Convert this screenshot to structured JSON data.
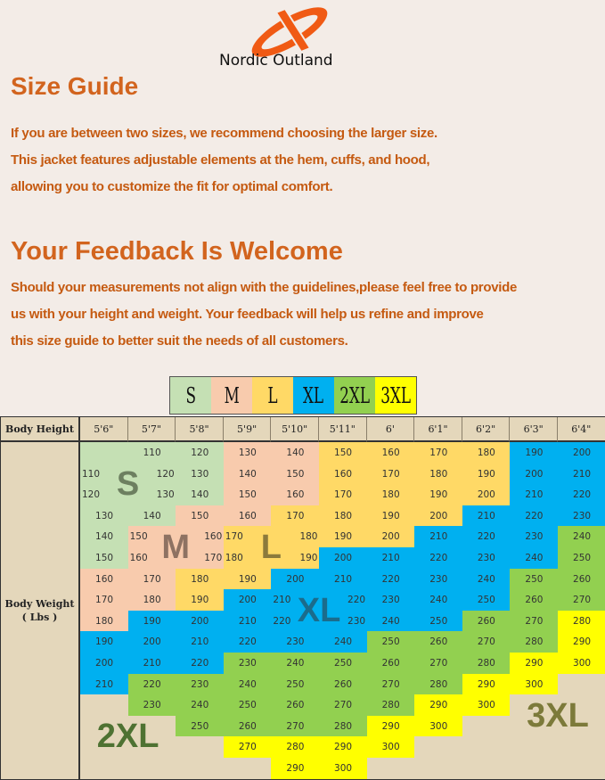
{
  "brand": {
    "name": "Nordic Outland",
    "logo_color": "#f05a14"
  },
  "size_guide": {
    "title": "Size Guide",
    "lines": [
      "If you are between two sizes, we recommend choosing the larger size.",
      "This jacket features adjustable elements at the hem, cuffs, and hood,",
      "allowing you to customize the fit for optimal comfort."
    ]
  },
  "feedback": {
    "title": "Your Feedback Is Welcome",
    "lines": [
      "Should your measurements not align with the guidelines,please feel free to provide",
      "us with your height and weight. Your feedback will help us refine and improve",
      "this size guide to better suit the needs of all customers."
    ]
  },
  "legend": [
    {
      "label": "S",
      "color": "#c5e0b4"
    },
    {
      "label": "M",
      "color": "#f8cbad"
    },
    {
      "label": "L",
      "color": "#ffd966"
    },
    {
      "label": "XL",
      "color": "#00b0f0"
    },
    {
      "label": "2XL",
      "color": "#92d050"
    },
    {
      "label": "3XL",
      "color": "#ffff00"
    }
  ],
  "chart_data": {
    "type": "heatmap",
    "row_header": "Body Height",
    "col_header_label": "Body Weight",
    "col_header_unit": "( Lbs )",
    "heights": [
      "5'6\"",
      "5'7\"",
      "5'8\"",
      "5'9\"",
      "5'10\"",
      "5'11\"",
      "6'",
      "6'1\"",
      "6'2\"",
      "6'3\"",
      "6'4\""
    ],
    "weights": [
      [
        null,
        110,
        120,
        130,
        140,
        150,
        160,
        170,
        180,
        190,
        200
      ],
      [
        110,
        120,
        130,
        140,
        150,
        160,
        170,
        180,
        190,
        200,
        210
      ],
      [
        120,
        130,
        140,
        150,
        160,
        170,
        180,
        190,
        200,
        210,
        220
      ],
      [
        130,
        140,
        150,
        160,
        170,
        180,
        190,
        200,
        210,
        220,
        230
      ],
      [
        140,
        150,
        160,
        170,
        180,
        190,
        200,
        210,
        220,
        230,
        240
      ],
      [
        150,
        160,
        170,
        180,
        190,
        200,
        210,
        220,
        230,
        240,
        250
      ],
      [
        160,
        170,
        180,
        190,
        200,
        210,
        220,
        230,
        240,
        250,
        260
      ],
      [
        170,
        180,
        190,
        200,
        210,
        220,
        230,
        240,
        250,
        260,
        270
      ],
      [
        180,
        190,
        200,
        210,
        220,
        230,
        240,
        250,
        260,
        270,
        280
      ],
      [
        190,
        200,
        210,
        220,
        230,
        240,
        250,
        260,
        270,
        280,
        290
      ],
      [
        200,
        210,
        220,
        230,
        240,
        250,
        260,
        270,
        280,
        290,
        300
      ],
      [
        210,
        220,
        230,
        240,
        250,
        260,
        270,
        280,
        290,
        300,
        null
      ],
      [
        null,
        230,
        240,
        250,
        260,
        270,
        280,
        290,
        300,
        null,
        null
      ],
      [
        null,
        null,
        250,
        260,
        270,
        280,
        290,
        300,
        null,
        null,
        null
      ],
      [
        null,
        null,
        null,
        270,
        280,
        290,
        300,
        null,
        null,
        null,
        null
      ],
      [
        null,
        null,
        null,
        null,
        290,
        300,
        null,
        null,
        null,
        null,
        null
      ]
    ],
    "sizes": [
      [
        "S",
        "S",
        "S",
        "M",
        "M",
        "L",
        "L",
        "L",
        "L",
        "XL",
        "XL"
      ],
      [
        "S",
        "S",
        "S",
        "M",
        "M",
        "L",
        "L",
        "L",
        "L",
        "XL",
        "XL"
      ],
      [
        "S",
        "S",
        "S",
        "M",
        "M",
        "L",
        "L",
        "L",
        "L",
        "XL",
        "XL"
      ],
      [
        "S",
        "S",
        "M",
        "M",
        "L",
        "L",
        "L",
        "L",
        "XL",
        "XL",
        "XL"
      ],
      [
        "S",
        "M",
        "M",
        "L",
        "L",
        "L",
        "L",
        "XL",
        "XL",
        "XL",
        "2XL"
      ],
      [
        "S",
        "M",
        "M",
        "L",
        "L",
        "XL",
        "XL",
        "XL",
        "XL",
        "XL",
        "2XL"
      ],
      [
        "M",
        "M",
        "L",
        "L",
        "XL",
        "XL",
        "XL",
        "XL",
        "XL",
        "2XL",
        "2XL"
      ],
      [
        "M",
        "M",
        "L",
        "XL",
        "XL",
        "XL",
        "XL",
        "XL",
        "XL",
        "2XL",
        "2XL"
      ],
      [
        "M",
        "XL",
        "XL",
        "XL",
        "XL",
        "XL",
        "XL",
        "XL",
        "2XL",
        "2XL",
        "3XL"
      ],
      [
        "XL",
        "XL",
        "XL",
        "XL",
        "XL",
        "XL",
        "2XL",
        "2XL",
        "2XL",
        "2XL",
        "3XL"
      ],
      [
        "XL",
        "XL",
        "XL",
        "2XL",
        "2XL",
        "2XL",
        "2XL",
        "2XL",
        "2XL",
        "3XL",
        "3XL"
      ],
      [
        "XL",
        "2XL",
        "2XL",
        "2XL",
        "2XL",
        "2XL",
        "2XL",
        "2XL",
        "3XL",
        "3XL",
        null
      ],
      [
        null,
        "2XL",
        "2XL",
        "2XL",
        "2XL",
        "2XL",
        "2XL",
        "3XL",
        "3XL",
        null,
        null
      ],
      [
        null,
        null,
        "2XL",
        "2XL",
        "2XL",
        "2XL",
        "3XL",
        "3XL",
        null,
        null,
        null
      ],
      [
        null,
        null,
        null,
        "3XL",
        "3XL",
        "3XL",
        "3XL",
        null,
        null,
        null,
        null
      ],
      [
        null,
        null,
        null,
        null,
        "3XL",
        "3XL",
        null,
        null,
        null,
        null,
        null
      ]
    ],
    "region_labels": [
      "S",
      "M",
      "L",
      "XL",
      "2XL",
      "3XL"
    ],
    "region_label_colors": [
      "#6d7f60",
      "#8e7262",
      "#8c7a3c",
      "#1b6c8c",
      "#4e7232",
      "#7c7a3a"
    ],
    "empty_color": "#e4d7bb"
  }
}
